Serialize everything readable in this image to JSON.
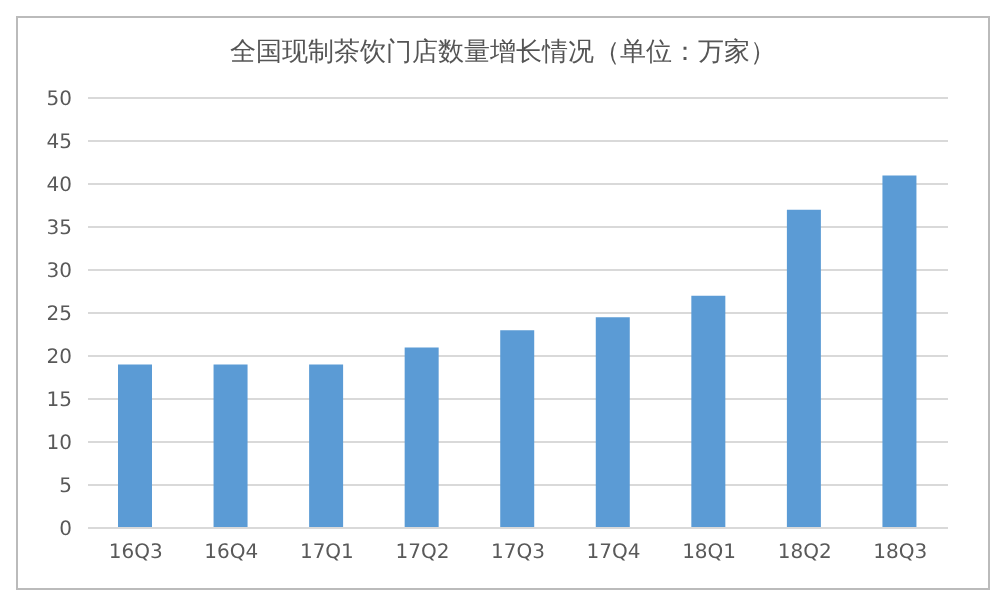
{
  "chart_data": {
    "type": "bar",
    "title": "全国现制茶饮门店数量增长情况（单位：万家）",
    "categories": [
      "16Q3",
      "16Q4",
      "17Q1",
      "17Q2",
      "17Q3",
      "17Q4",
      "18Q1",
      "18Q2",
      "18Q3"
    ],
    "values": [
      19,
      19,
      19,
      21,
      23,
      24.5,
      27,
      37,
      41
    ],
    "color": "#5b9bd5",
    "ylim": [
      0,
      50
    ],
    "yticks": [
      0,
      5,
      10,
      15,
      20,
      25,
      30,
      35,
      40,
      45,
      50
    ],
    "grid": "y"
  }
}
